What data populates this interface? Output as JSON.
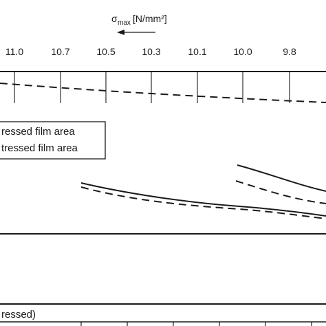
{
  "chart_data": {
    "type": "line",
    "top_axis": {
      "label_main": "σ",
      "label_sub": "max",
      "label_unit": "[N/mm²]",
      "ticks": [
        "11.0",
        "10.7",
        "10.5",
        "10.3",
        "10.1",
        "10.0",
        "9.8"
      ],
      "direction": "leftward arrow"
    },
    "legend": {
      "entries": [
        "ressed film area",
        "tressed film area"
      ],
      "placement": "top-left"
    },
    "bottom_panel_label": "ressed)",
    "series": [
      {
        "style": "dashed",
        "panel": "top"
      },
      {
        "style": "solid",
        "panel": "middle-left"
      },
      {
        "style": "dashed",
        "panel": "middle-left"
      },
      {
        "style": "solid",
        "panel": "middle-right"
      },
      {
        "style": "dashed",
        "panel": "middle-right"
      }
    ]
  }
}
